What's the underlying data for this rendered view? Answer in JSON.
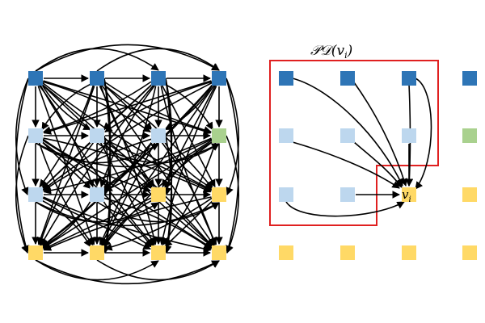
{
  "colors": {
    "dark_blue": "#2e75b6",
    "light_blue": "#bdd7ee",
    "green": "#a9d18e",
    "yellow": "#ffd966",
    "highlight": "#e02020",
    "edge": "#000000"
  },
  "grid": [
    [
      "dark_blue",
      "dark_blue",
      "dark_blue",
      "dark_blue"
    ],
    [
      "light_blue",
      "light_blue",
      "light_blue",
      "green"
    ],
    [
      "light_blue",
      "light_blue",
      "yellow",
      "yellow"
    ],
    [
      "yellow",
      "yellow",
      "yellow",
      "yellow"
    ]
  ],
  "right_panel": {
    "title": "𝒫𝒟(v",
    "title_subscript": "i",
    "title_close": ")",
    "target_label": "v",
    "target_subscript": "i",
    "target_cell": [
      2,
      2
    ]
  }
}
